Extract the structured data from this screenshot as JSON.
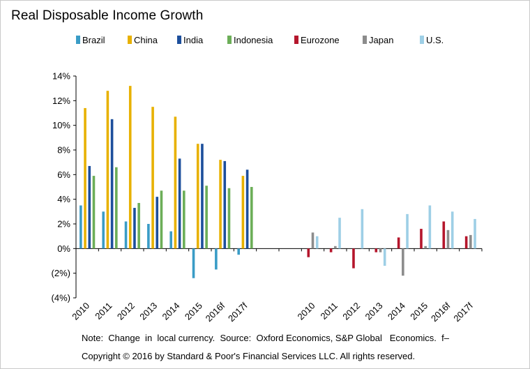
{
  "title": "Real Disposable Income Growth",
  "note": "Note:  Change  in  local currency.  Source:  Oxford Economics, S&P Global   Economics.  f–",
  "copyright": "Copyright © 2016 by Standard & Poor's Financial Services LLC. All rights reserved.",
  "chart_data": {
    "type": "bar",
    "title": "Real Disposable Income Growth",
    "xlabel": "",
    "ylabel": "",
    "ylim": [
      -4,
      14
    ],
    "ytick_labels": [
      "14%",
      "12%",
      "10%",
      "8%",
      "6%",
      "4%",
      "2%",
      "0%",
      "(2%)",
      "(4%)"
    ],
    "grid": false,
    "legend_position": "top",
    "groups": [
      {
        "categories": [
          "2010",
          "2011",
          "2012",
          "2013",
          "2014",
          "2015",
          "2016f",
          "2017f"
        ],
        "series": [
          {
            "name": "Brazil",
            "color": "#3a9cc6",
            "values": [
              3.5,
              3.0,
              2.2,
              2.0,
              1.4,
              -2.4,
              -1.7,
              -0.5
            ]
          },
          {
            "name": "China",
            "color": "#e8b100",
            "values": [
              11.4,
              12.8,
              13.2,
              11.5,
              10.7,
              8.5,
              7.2,
              5.9
            ]
          },
          {
            "name": "India",
            "color": "#1d4f9c",
            "values": [
              6.7,
              10.5,
              3.3,
              4.2,
              7.3,
              8.5,
              7.1,
              6.4
            ]
          },
          {
            "name": "Indonesia",
            "color": "#6cae58",
            "values": [
              5.9,
              6.6,
              3.7,
              4.7,
              4.7,
              5.1,
              4.9,
              5.0
            ]
          }
        ]
      },
      {
        "categories": [
          "2010",
          "2011",
          "2012",
          "2013",
          "2014",
          "2015",
          "2016f",
          "2017f"
        ],
        "series": [
          {
            "name": "Eurozone",
            "color": "#b5162c",
            "values": [
              -0.7,
              -0.3,
              -1.6,
              -0.3,
              0.9,
              1.6,
              2.2,
              1.0
            ]
          },
          {
            "name": "Japan",
            "color": "#8c8c8c",
            "values": [
              1.3,
              0.2,
              0.0,
              -0.3,
              -2.2,
              0.2,
              1.5,
              1.1
            ]
          },
          {
            "name": "U.S.",
            "color": "#9ecfe6",
            "values": [
              1.0,
              2.5,
              3.2,
              -1.4,
              2.8,
              3.5,
              3.0,
              2.4
            ]
          }
        ]
      }
    ]
  }
}
